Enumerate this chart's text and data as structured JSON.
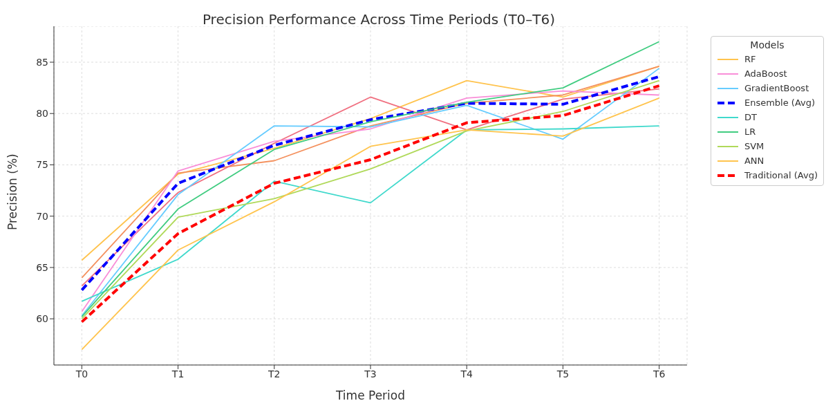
{
  "chart_data": {
    "type": "line",
    "title": "Precision Performance Across Time Periods (T0–T6)",
    "xlabel": "Time Period",
    "ylabel": "Precision (%)",
    "legend_title": "Models",
    "categories": [
      "T0",
      "T1",
      "T2",
      "T3",
      "T4",
      "T5",
      "T6"
    ],
    "ylim": [
      55.5,
      88.5
    ],
    "yticks": [
      60,
      65,
      70,
      75,
      80,
      85
    ],
    "grid": true,
    "legend": "top right",
    "marker": "none",
    "line_style": "solid",
    "series": [
      {
        "name": "RF",
        "color": "#ffc34d",
        "values": [
          65.7,
          74.1,
          76.6,
          79.5,
          83.2,
          81.6,
          84.6
        ]
      },
      {
        "color": "#f4915e",
        "values": [
          64.0,
          74.2,
          75.4,
          78.8,
          81.0,
          81.8,
          84.6
        ]
      },
      {
        "color": "#f07080",
        "values": [
          63.2,
          72.3,
          77.1,
          81.6,
          78.4,
          81.4,
          82.4
        ]
      },
      {
        "name": "AdaBoost",
        "color": "#f98ed8",
        "values": [
          60.7,
          74.4,
          77.3,
          78.5,
          81.5,
          82.2,
          81.8
        ]
      },
      {
        "name": "GradientBoost",
        "color": "#66ccff",
        "values": [
          60.3,
          72.1,
          78.8,
          78.7,
          80.8,
          77.5,
          84.4
        ]
      },
      {
        "name": "Ensemble (Avg)",
        "color": "#0000ff",
        "line_style": "dashed",
        "values": [
          62.8,
          73.2,
          76.9,
          79.4,
          81.0,
          80.9,
          83.6
        ]
      },
      {
        "name": "DT",
        "color": "#40d9cc",
        "values": [
          61.7,
          65.8,
          73.4,
          71.3,
          78.4,
          78.5,
          78.8
        ]
      },
      {
        "name": "LR",
        "color": "#40cc80",
        "values": [
          60.2,
          70.7,
          76.5,
          79.2,
          81.1,
          82.5,
          87.0
        ]
      },
      {
        "name": "SVM",
        "color": "#b0d95a",
        "values": [
          60.0,
          69.9,
          71.7,
          74.6,
          78.3,
          80.2,
          83.2
        ]
      },
      {
        "name": "ANN",
        "color": "#ffc44d",
        "values": [
          57.0,
          66.7,
          71.4,
          76.8,
          78.4,
          77.8,
          81.5
        ]
      },
      {
        "name": "Traditional (Avg)",
        "color": "#ff0000",
        "line_style": "dashed",
        "values": [
          59.7,
          68.3,
          73.2,
          75.5,
          79.1,
          79.8,
          82.7
        ]
      }
    ]
  }
}
